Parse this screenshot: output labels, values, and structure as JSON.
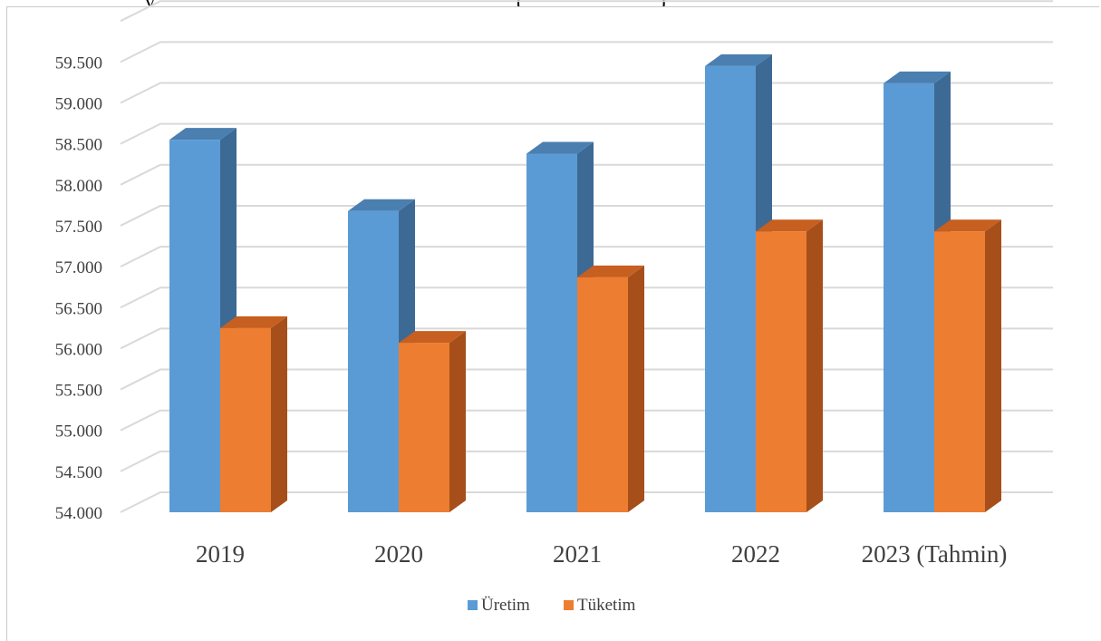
{
  "top_caption": {
    "left_fragment": "y",
    "right_fragment": "(",
    "closing_fragment": ")"
  },
  "colors": {
    "uretim": "#5b9bd5",
    "uretim_side": "#3d6a94",
    "uretim_top": "#4a7fb0",
    "tuketim": "#ed7d31",
    "tuketim_side": "#a64f1a",
    "tuketim_top": "#c65f20",
    "grid": "#d9d9d9",
    "text": "#404040"
  },
  "chart_data": {
    "type": "bar",
    "style": "3d-clustered-column",
    "title": "",
    "xlabel": "",
    "ylabel": "",
    "categories": [
      "2019",
      "2020",
      "2021",
      "2022",
      "2023 (Tahmin)"
    ],
    "series": [
      {
        "name": "Üretim",
        "values": [
          58.55,
          57.68,
          58.38,
          59.45,
          59.24
        ]
      },
      {
        "name": "Tüketim",
        "values": [
          56.25,
          56.07,
          56.87,
          57.43,
          57.43
        ]
      }
    ],
    "ylim": [
      54.0,
      60.0
    ],
    "yticks": [
      "54.000",
      "54.500",
      "55.000",
      "55.500",
      "56.000",
      "56.500",
      "57.000",
      "57.500",
      "58.000",
      "58.500",
      "59.000",
      "59.500"
    ],
    "grid": true,
    "legend_position": "bottom"
  }
}
